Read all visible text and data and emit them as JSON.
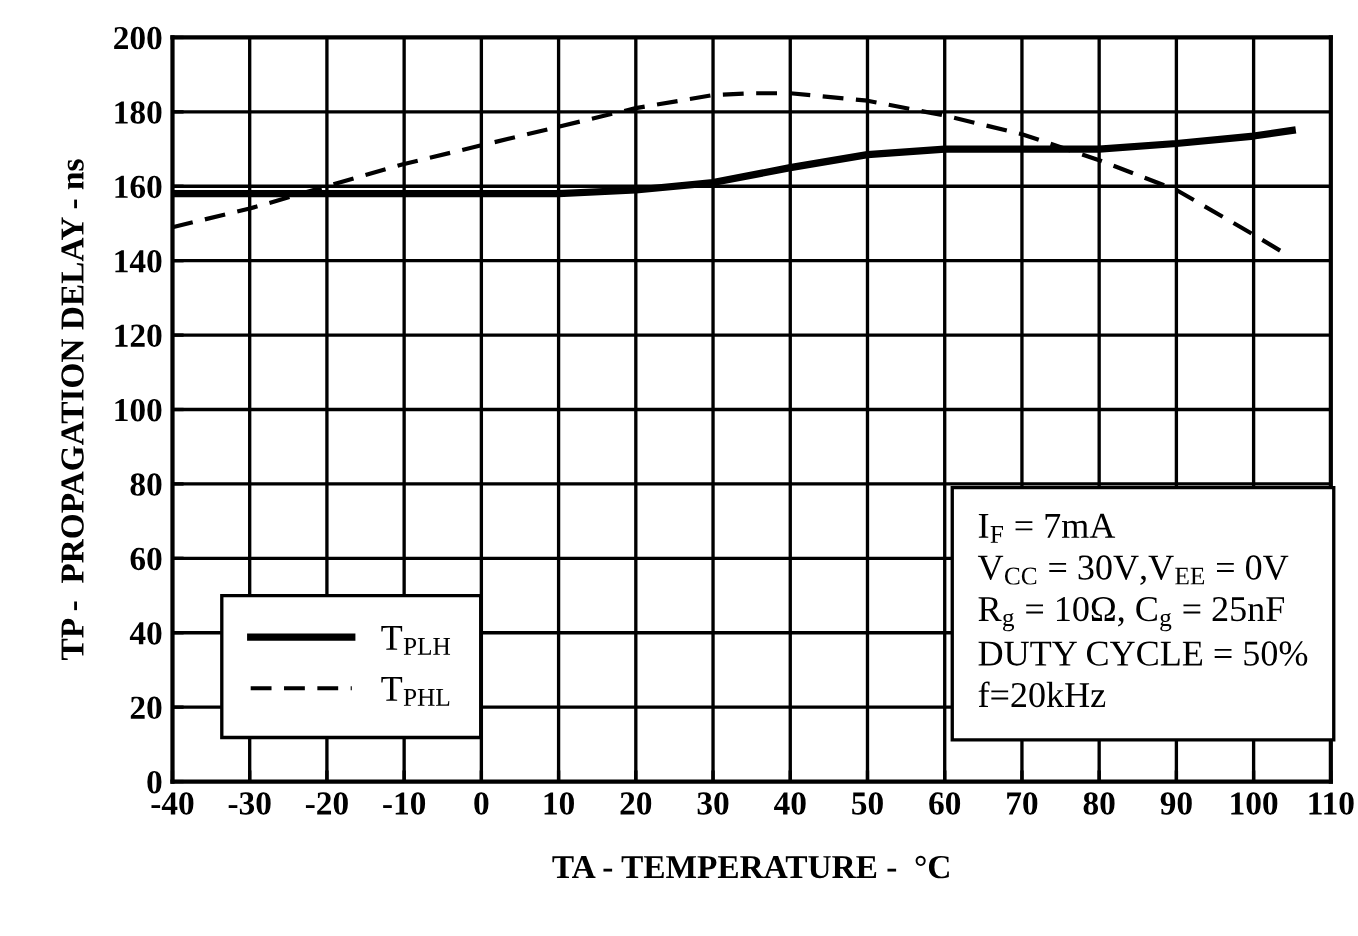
{
  "chart_data": {
    "type": "line",
    "xlabel": "TA - TEMPERATURE -  °C",
    "ylabel": "TP -  PROPAGATION DELAY - ns",
    "xlim": [
      -40,
      110
    ],
    "xticks": [
      -40,
      -30,
      -20,
      -10,
      0,
      10,
      20,
      30,
      40,
      50,
      60,
      70,
      80,
      90,
      100,
      110
    ],
    "ylim": [
      0,
      200
    ],
    "yticks": [
      0,
      20,
      40,
      60,
      80,
      100,
      120,
      140,
      160,
      180,
      200
    ],
    "grid": true,
    "legend": "bottom left",
    "marker": "none",
    "series": [
      {
        "name": "T$_{PLH}$",
        "color": "#000000",
        "line_style": "solid",
        "x": [
          -40,
          -30,
          -20,
          -10,
          0,
          10,
          20,
          30,
          40,
          50,
          60,
          70,
          80,
          90,
          100,
          105
        ],
        "values": [
          158,
          158,
          158,
          158,
          158,
          158,
          159,
          161,
          165,
          168.5,
          170,
          170,
          170,
          171.5,
          173.5,
          175
        ]
      },
      {
        "name": "T$_{PHL}$",
        "color": "#000000",
        "line_style": "dashed",
        "x": [
          -40,
          -30,
          -20,
          -10,
          0,
          10,
          20,
          30,
          35,
          40,
          50,
          60,
          70,
          80,
          90,
          100,
          104
        ],
        "values": [
          149,
          154,
          160,
          166,
          171,
          176,
          181,
          184.5,
          185,
          185,
          183,
          179,
          174,
          167,
          159,
          147,
          142
        ]
      }
    ],
    "annotations": [
      "I$_{F}$ = 7mA",
      "V$_{CC}$ = 30V,V$_{EE}$ = 0V",
      "R$_{g}$ = 10Ω, C$_{g}$ = 25nF",
      "DUTY CYCLE = 50%",
      "f=20kHz"
    ]
  }
}
